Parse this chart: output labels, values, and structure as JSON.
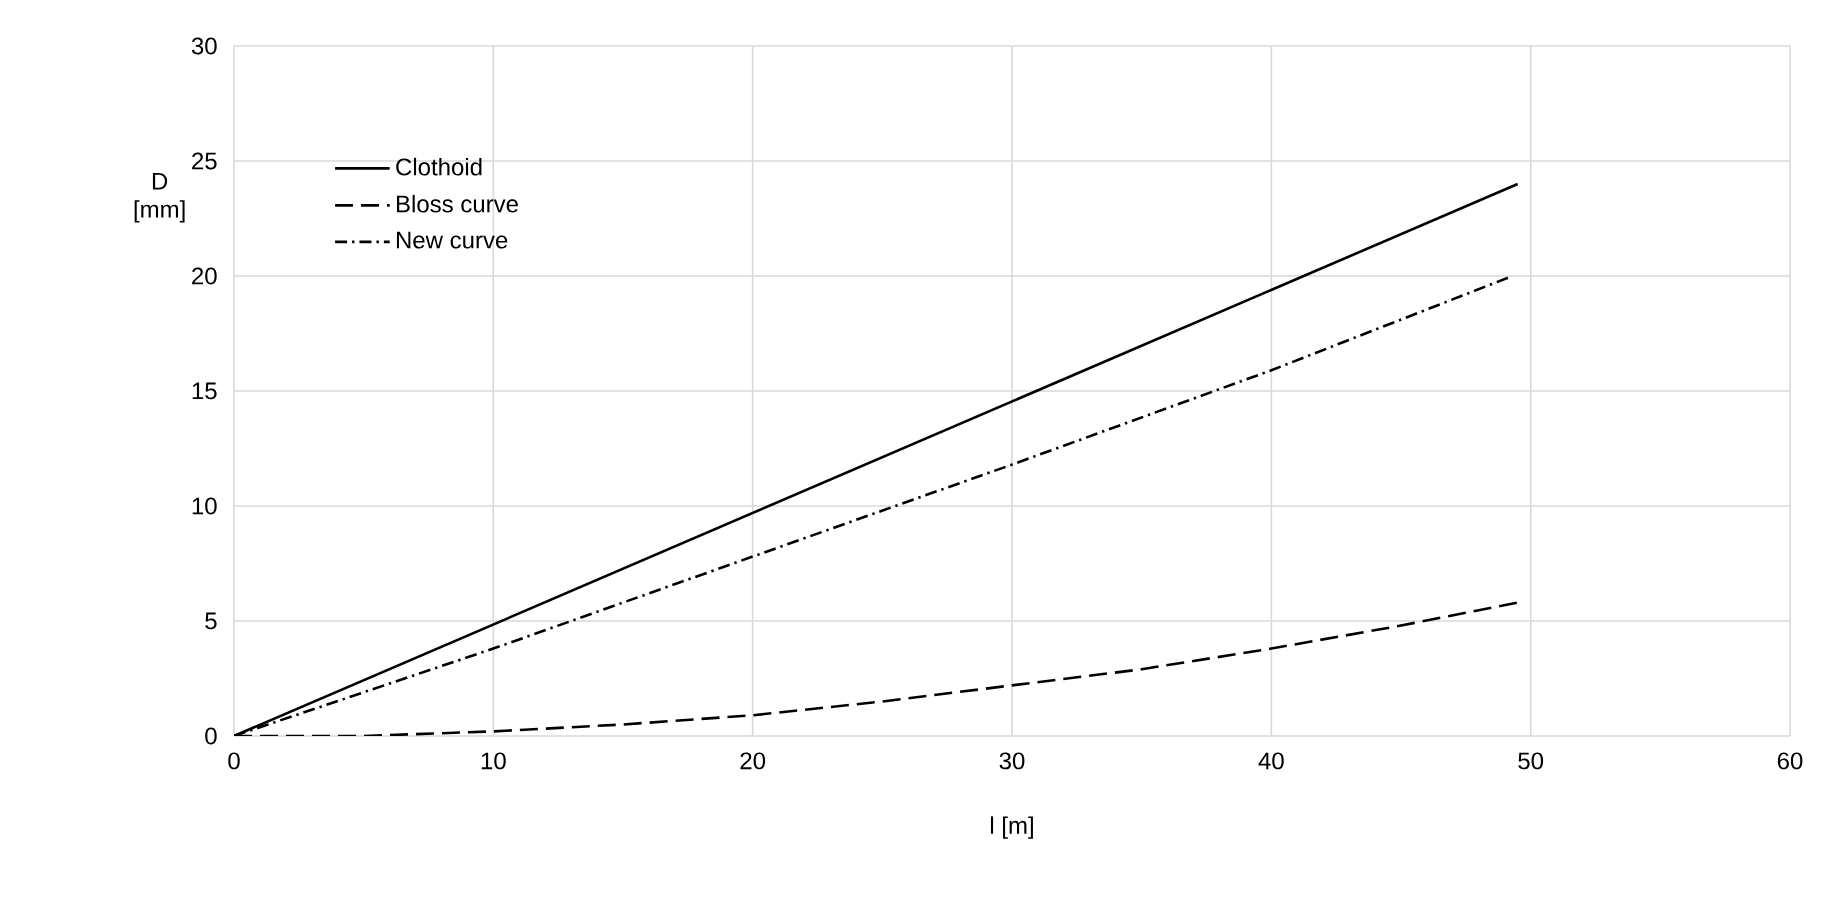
{
  "chart_data": {
    "type": "line",
    "xlabel": "l [m]",
    "ylabel": "D [mm]",
    "xlim": [
      0,
      60
    ],
    "xticks": [
      0,
      10,
      20,
      30,
      40,
      50,
      60
    ],
    "ylim": [
      0,
      30
    ],
    "yticks": [
      0,
      5,
      10,
      15,
      20,
      25,
      30
    ],
    "grid": true,
    "legend": "top left",
    "marker": "none",
    "series": [
      {
        "name": "Clothoid",
        "color": "#000000",
        "line_style": "solid",
        "x": [
          0,
          49.5
        ],
        "values": [
          0,
          24
        ]
      },
      {
        "name": "Bloss curve",
        "color": "#000000",
        "line_style": "dashed",
        "x": [
          0,
          5,
          10,
          15,
          20,
          25,
          30,
          35,
          40,
          45,
          49.5
        ],
        "values": [
          0,
          0,
          0.2,
          0.5,
          0.9,
          1.5,
          2.2,
          2.9,
          3.8,
          4.8,
          5.8
        ]
      },
      {
        "name": "New curve",
        "color": "#000000",
        "line_style": "dashdot",
        "x": [
          0,
          10,
          20,
          30,
          40,
          49.3
        ],
        "values": [
          0,
          3.8,
          7.8,
          11.8,
          15.9,
          20
        ]
      }
    ]
  }
}
